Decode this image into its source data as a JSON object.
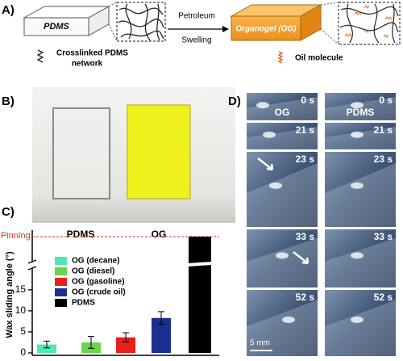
{
  "panel_a": {
    "label": "A)",
    "pdms": "PDMS",
    "arrow_top": "Petroleum",
    "arrow_bottom": "Swelling",
    "organogel": "Organogel (OG)",
    "network_legend": [
      "Crosslinked PDMS",
      "network"
    ],
    "oil_legend": "Oil molecule"
  },
  "panel_b": {
    "label": "B)",
    "samples": [
      "PDMS",
      "OG"
    ]
  },
  "panel_d": {
    "label": "D)",
    "columns": [
      "OG",
      "PDMS"
    ],
    "times": [
      "0 s",
      "21 s",
      "23 s",
      "33 s",
      "52 s"
    ],
    "scale_bar": "5 mm"
  },
  "chart_data": {
    "type": "bar",
    "label": "C)",
    "ylabel": "Wax sliding angle (°)",
    "annotation": "Pinning",
    "ylim": [
      0,
      19
    ],
    "yticks": [
      0,
      5,
      10,
      15
    ],
    "axis_break": true,
    "series": [
      {
        "name": "OG (decane)",
        "color": "#4de8b4",
        "values": [
          2.0
        ],
        "errors": [
          0.8
        ]
      },
      {
        "name": "OG (diesel)",
        "color": "#6cd44c",
        "values": [
          2.5
        ],
        "errors": [
          1.4
        ]
      },
      {
        "name": "OG (gasoline)",
        "color": "#e8201e",
        "values": [
          3.7
        ],
        "errors": [
          1.1
        ]
      },
      {
        "name": "OG (crude oil)",
        "color": "#1a2f8f",
        "values": [
          8.3
        ],
        "errors": [
          1.5
        ]
      },
      {
        "name": "PDMS",
        "color": "#000000"
      }
    ]
  }
}
